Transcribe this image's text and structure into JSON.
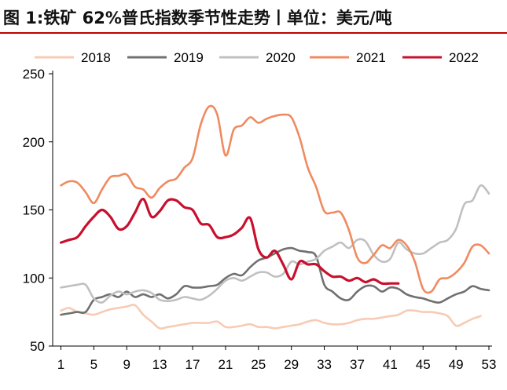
{
  "title": "图 1:铁矿 62%普氏指数季节性走势丨单位：美元/吨",
  "colors": {
    "accent": "#c00000",
    "2018": "#f7cbb4",
    "2019": "#707070",
    "2020": "#c0c0c0",
    "2021": "#f08a60",
    "2022": "#c8102e"
  },
  "chart_data": {
    "type": "line",
    "xlim": [
      0,
      53
    ],
    "ylim": [
      50,
      250
    ],
    "x_ticks": [
      1,
      5,
      9,
      13,
      17,
      21,
      25,
      29,
      33,
      37,
      41,
      45,
      49,
      53
    ],
    "y_ticks": [
      50,
      100,
      150,
      200,
      250
    ],
    "grid": false,
    "legend": "top",
    "series": [
      {
        "name": "2018",
        "x": [
          1,
          2,
          3,
          4,
          5,
          6,
          7,
          8,
          9,
          10,
          11,
          12,
          13,
          14,
          15,
          16,
          17,
          18,
          19,
          20,
          21,
          22,
          23,
          24,
          25,
          26,
          27,
          28,
          29,
          30,
          31,
          32,
          33,
          34,
          35,
          36,
          37,
          38,
          39,
          40,
          41,
          42,
          43,
          44,
          45,
          46,
          47,
          48,
          49,
          50,
          51,
          52
        ],
        "values": [
          76,
          78,
          75,
          74,
          73,
          75,
          77,
          78,
          79,
          80,
          73,
          68,
          63,
          64,
          65,
          66,
          67,
          67,
          67,
          68,
          64,
          64,
          65,
          66,
          64,
          64,
          63,
          64,
          65,
          66,
          68,
          69,
          67,
          66,
          66,
          67,
          69,
          70,
          70,
          71,
          72,
          73,
          76,
          76,
          75,
          75,
          74,
          72,
          65,
          67,
          70,
          72
        ]
      },
      {
        "name": "2019",
        "x": [
          1,
          2,
          3,
          4,
          5,
          6,
          7,
          8,
          9,
          10,
          11,
          12,
          13,
          14,
          15,
          16,
          17,
          18,
          19,
          20,
          21,
          22,
          23,
          24,
          25,
          26,
          27,
          28,
          29,
          30,
          31,
          32,
          33,
          34,
          35,
          36,
          37,
          38,
          39,
          40,
          41,
          42,
          43,
          44,
          45,
          46,
          47,
          48,
          49,
          50,
          51,
          52,
          53
        ],
        "values": [
          73,
          74,
          75,
          75,
          84,
          86,
          88,
          86,
          90,
          86,
          88,
          86,
          88,
          85,
          88,
          94,
          93,
          93,
          94,
          95,
          100,
          103,
          102,
          108,
          113,
          115,
          118,
          121,
          122,
          120,
          119,
          116,
          95,
          90,
          85,
          84,
          90,
          94,
          94,
          90,
          93,
          92,
          88,
          86,
          85,
          83,
          82,
          85,
          88,
          90,
          94,
          92,
          91
        ]
      },
      {
        "name": "2020",
        "x": [
          1,
          2,
          3,
          4,
          5,
          6,
          7,
          8,
          9,
          10,
          11,
          12,
          13,
          14,
          15,
          16,
          17,
          18,
          19,
          20,
          21,
          22,
          23,
          24,
          25,
          26,
          27,
          28,
          29,
          30,
          31,
          32,
          33,
          34,
          35,
          36,
          37,
          38,
          39,
          40,
          41,
          42,
          43,
          44,
          45,
          46,
          47,
          48,
          49,
          50,
          51,
          52,
          53
        ],
        "values": [
          93,
          94,
          95,
          95,
          85,
          82,
          87,
          90,
          88,
          90,
          91,
          89,
          84,
          83,
          84,
          86,
          85,
          84,
          87,
          92,
          98,
          100,
          98,
          101,
          104,
          104,
          101,
          103,
          112,
          110,
          112,
          114,
          120,
          123,
          126,
          122,
          128,
          127,
          117,
          112,
          114,
          126,
          121,
          118,
          118,
          122,
          126,
          128,
          136,
          154,
          157,
          168,
          162
        ]
      },
      {
        "name": "2021",
        "x": [
          1,
          2,
          3,
          4,
          5,
          6,
          7,
          8,
          9,
          10,
          11,
          12,
          13,
          14,
          15,
          16,
          17,
          18,
          19,
          20,
          21,
          22,
          23,
          24,
          25,
          26,
          27,
          28,
          29,
          30,
          31,
          32,
          33,
          34,
          35,
          36,
          37,
          38,
          39,
          40,
          41,
          42,
          43,
          44,
          45,
          46,
          47,
          48,
          49,
          50,
          51,
          52,
          53
        ],
        "values": [
          168,
          171,
          170,
          163,
          155,
          165,
          174,
          175,
          176,
          167,
          165,
          159,
          166,
          171,
          173,
          181,
          188,
          213,
          226,
          220,
          190,
          209,
          212,
          218,
          214,
          217,
          219,
          220,
          218,
          203,
          181,
          167,
          149,
          148,
          148,
          135,
          115,
          111,
          117,
          124,
          122,
          128,
          124,
          112,
          92,
          90,
          99,
          100,
          104,
          111,
          123,
          124,
          118
        ]
      },
      {
        "name": "2022",
        "x": [
          1,
          2,
          3,
          4,
          5,
          6,
          7,
          8,
          9,
          10,
          11,
          12,
          13,
          14,
          15,
          16,
          17,
          18,
          19,
          20,
          21,
          22,
          23,
          24,
          25,
          26,
          27,
          28,
          29,
          30,
          31,
          32,
          33,
          34,
          35,
          36,
          37,
          38,
          39,
          40,
          41,
          42
        ],
        "values": [
          126,
          128,
          130,
          138,
          145,
          150,
          145,
          136,
          138,
          148,
          158,
          145,
          149,
          157,
          157,
          152,
          150,
          140,
          139,
          130,
          130,
          132,
          137,
          144,
          121,
          115,
          120,
          110,
          99,
          112,
          110,
          110,
          105,
          101,
          101,
          98,
          100,
          97,
          99,
          96,
          96,
          96
        ]
      }
    ]
  }
}
